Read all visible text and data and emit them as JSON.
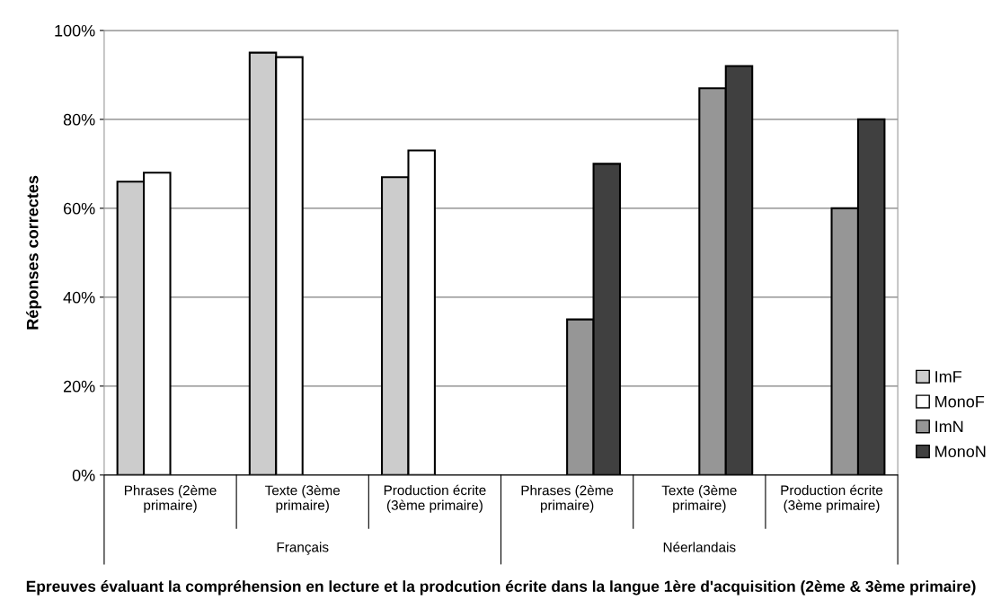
{
  "chart_data": {
    "type": "bar",
    "xlabel": "Epreuves évaluant la compréhension en lecture et la prodcution écrite dans la langue 1ère d'acquisition (2ème & 3ème primaire)",
    "ylabel": "Réponses correctes",
    "categories": [
      "Phrases (2ème\nprimaire)",
      "Texte (3ème\nprimaire)",
      "Production écrite\n(3ème primaire)",
      "Phrases (2ème\nprimaire)",
      "Texte (3ème\nprimaire)",
      "Production écrite\n(3ème primaire)"
    ],
    "annotations": [
      "Français",
      "Néerlandais"
    ],
    "series": [
      {
        "name": "ImF",
        "color": "#cccccc",
        "values": [
          66,
          95,
          67,
          null,
          null,
          null
        ]
      },
      {
        "name": "MonoF",
        "color": "#ffffff",
        "values": [
          68,
          94,
          73,
          null,
          null,
          null
        ]
      },
      {
        "name": "ImN",
        "color": "#969696",
        "values": [
          null,
          null,
          null,
          35,
          87,
          60
        ]
      },
      {
        "name": "MonoN",
        "color": "#404040",
        "values": [
          null,
          null,
          null,
          70,
          92,
          80
        ]
      }
    ],
    "ylim": [
      0,
      100
    ],
    "yticks": [
      {
        "value": 0,
        "label": "0%"
      },
      {
        "value": 20,
        "label": "20%"
      },
      {
        "value": 40,
        "label": "40%"
      },
      {
        "value": 60,
        "label": "60%"
      },
      {
        "value": 80,
        "label": "80%"
      },
      {
        "value": 100,
        "label": "100%"
      }
    ],
    "grid": "y",
    "legend": "right"
  }
}
